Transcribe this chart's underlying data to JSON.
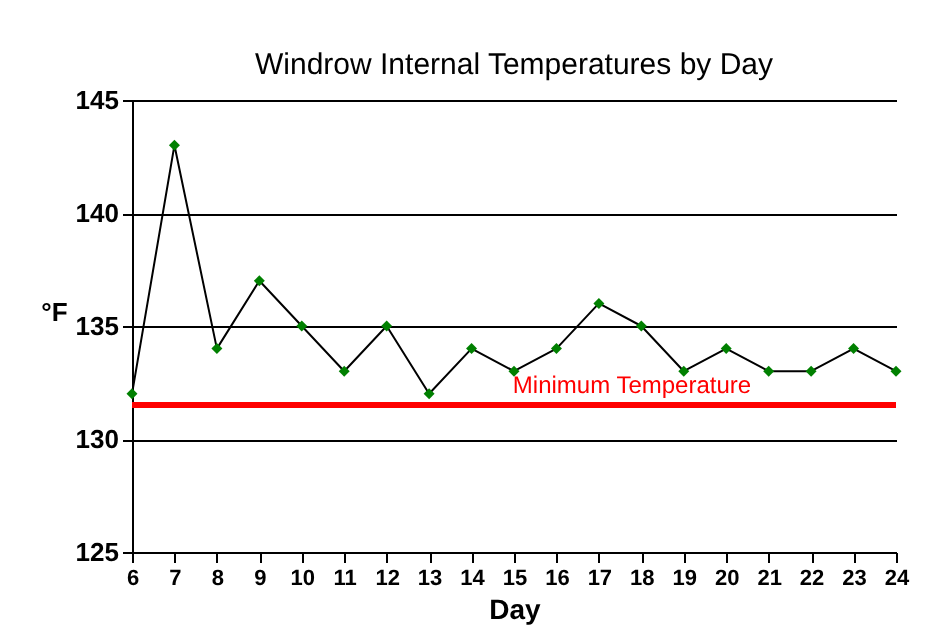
{
  "chart_data": {
    "type": "line",
    "title": "Windrow Internal Temperatures by Day",
    "xlabel": "Day",
    "ylabel": "°F",
    "x": [
      6,
      7,
      8,
      9,
      10,
      11,
      12,
      13,
      14,
      15,
      16,
      17,
      18,
      19,
      20,
      21,
      22,
      23,
      24
    ],
    "series": [
      {
        "color": "#008000",
        "values": [
          132,
          143,
          134,
          137,
          135,
          133,
          135,
          132,
          134,
          133,
          134,
          136,
          135,
          133,
          134,
          133,
          133,
          134,
          133
        ]
      }
    ],
    "xlim": [
      6,
      24
    ],
    "xticks": [
      6,
      7,
      8,
      9,
      10,
      11,
      12,
      13,
      14,
      15,
      16,
      17,
      18,
      19,
      20,
      21,
      22,
      23,
      24
    ],
    "ylim": [
      125,
      145
    ],
    "yticks": [
      125,
      130,
      135,
      140,
      145
    ],
    "grid": "y",
    "marker": "diamond",
    "line_style": "solid",
    "ref_lines": [
      {
        "axis": "y",
        "value": 131.5,
        "label": "Minimum Temperature",
        "color": "#ff0000"
      }
    ]
  }
}
